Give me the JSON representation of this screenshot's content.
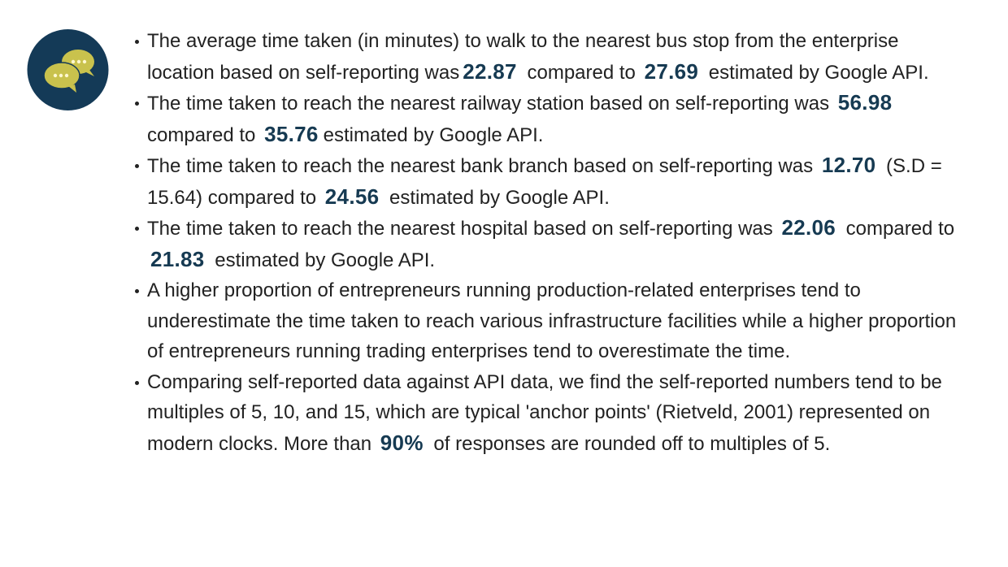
{
  "colors": {
    "icon_bg": "#143a57",
    "icon_bubble": "#c9c24d",
    "highlight": "#163a52",
    "text": "#222222"
  },
  "icon": "chat-bubbles-icon",
  "items": [
    {
      "parts": [
        {
          "t": "The average time taken (in minutes) to walk to the nearest bus stop from the enterprise location based on self-reporting was"
        },
        {
          "t": "22.87",
          "hl": true
        },
        {
          "t": " compared to "
        },
        {
          "t": "27.69",
          "hl": true
        },
        {
          "t": " estimated by Google API."
        }
      ]
    },
    {
      "parts": [
        {
          "t": "The time taken to reach the nearest railway station based on self-reporting was "
        },
        {
          "t": "56.98",
          "hl": true
        },
        {
          "t": " compared to "
        },
        {
          "t": "35.76",
          "hl": true
        },
        {
          "t": "estimated by Google API."
        }
      ]
    },
    {
      "parts": [
        {
          "t": "The time taken to reach the nearest bank branch based on self-reporting was "
        },
        {
          "t": "12.70",
          "hl": true
        },
        {
          "t": " (S.D = 15.64) compared to "
        },
        {
          "t": "24.56",
          "hl": true
        },
        {
          "t": " estimated by Google API."
        }
      ]
    },
    {
      "parts": [
        {
          "t": "The time taken to reach the nearest hospital based on self-reporting was "
        },
        {
          "t": "22.06",
          "hl": true
        },
        {
          "t": " compared to "
        },
        {
          "t": "21.83",
          "hl": true
        },
        {
          "t": " estimated by Google API."
        }
      ]
    },
    {
      "parts": [
        {
          "t": "A higher proportion of entrepreneurs running production-related enterprises tend to underestimate the time taken to reach various infrastructure facilities while a higher proportion of entrepreneurs running trading enterprises tend to overestimate the time."
        }
      ]
    },
    {
      "parts": [
        {
          "t": "Comparing self-reported data against API data, we find the self-reported numbers tend to be multiples of 5, 10, and 15, which are typical 'anchor points' (Rietveld, 2001) represented on modern clocks. More than "
        },
        {
          "t": "90%",
          "hl": true
        },
        {
          "t": " of responses are rounded off to multiples of 5."
        }
      ]
    }
  ]
}
